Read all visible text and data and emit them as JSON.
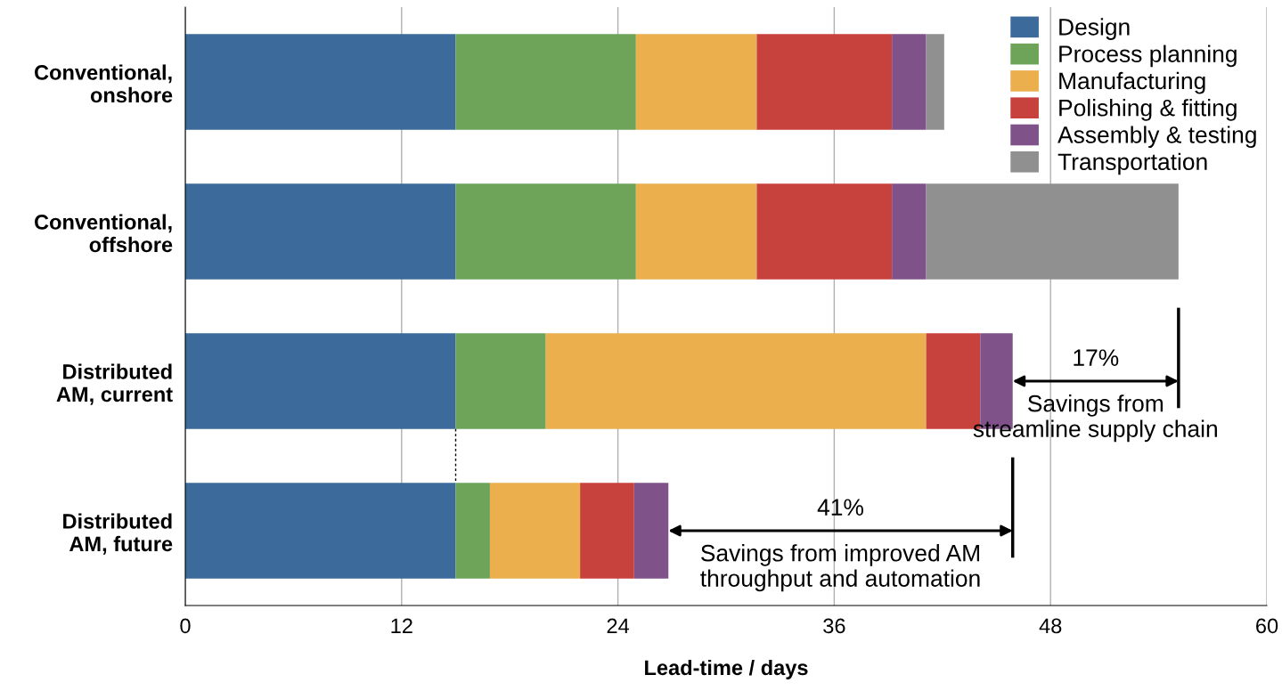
{
  "chart_data": {
    "type": "bar",
    "orientation": "horizontal",
    "stacked": true,
    "categories": [
      "Conventional,\nonshore",
      "Conventional,\noffshore",
      "Distributed\nAM, current",
      "Distributed\nAM, future"
    ],
    "series": [
      {
        "name": "Design",
        "color": "#3c6b9b",
        "values": [
          15,
          15,
          15,
          15
        ]
      },
      {
        "name": "Process planning",
        "color": "#6ea45a",
        "values": [
          10,
          10,
          5,
          1.9
        ]
      },
      {
        "name": "Manufacturing",
        "color": "#ecaf4e",
        "values": [
          6.7,
          6.7,
          21.1,
          5.0
        ]
      },
      {
        "name": "Polishing & fitting",
        "color": "#c8423d",
        "values": [
          7.5,
          7.5,
          3.0,
          3.0
        ]
      },
      {
        "name": "Assembly & testing",
        "color": "#80528a",
        "values": [
          1.9,
          1.9,
          1.8,
          1.9
        ]
      },
      {
        "name": "Transportation",
        "color": "#8f908f",
        "values": [
          1.0,
          14,
          null,
          null
        ]
      }
    ],
    "xlabel": "Lead-time / days",
    "xlim": [
      0,
      60
    ],
    "xticks": [
      0,
      12,
      24,
      36,
      48,
      60
    ],
    "grid": "x",
    "legend": "top right",
    "annotations": [
      "17%",
      "Savings from\nstreamline supply chain",
      "41%",
      "Savings from improved AM\nthroughput and automation"
    ]
  }
}
